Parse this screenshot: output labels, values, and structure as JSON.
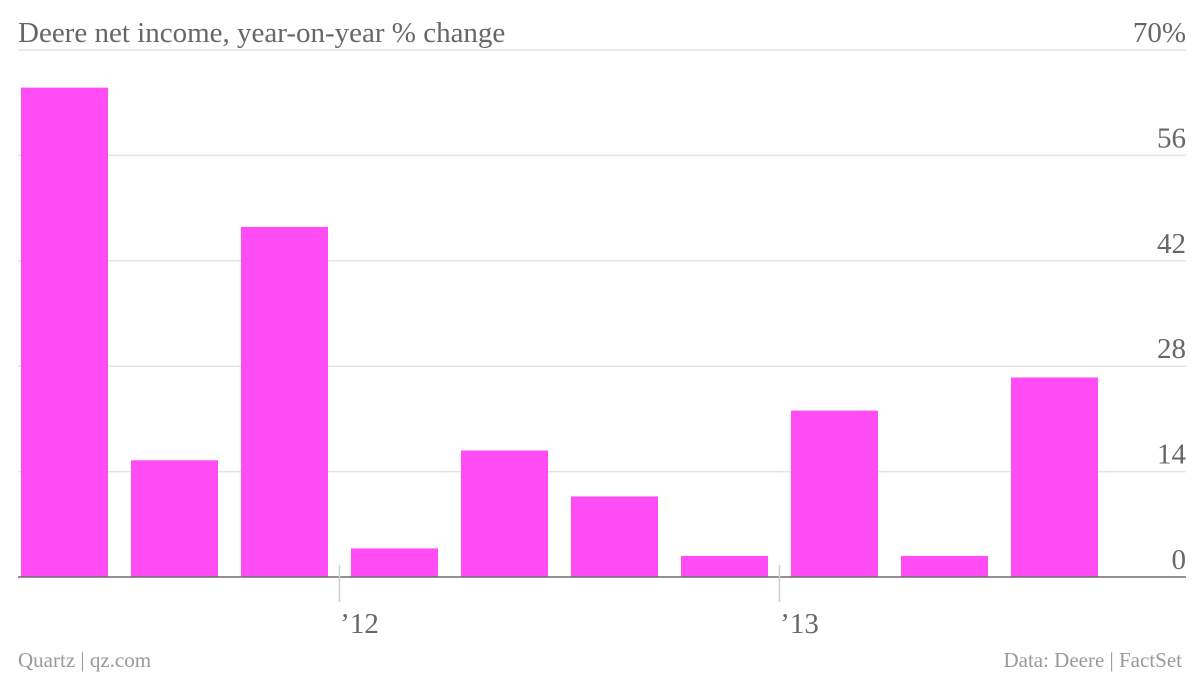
{
  "chart_data": {
    "type": "bar",
    "title": "Deere net income, year-on-year % change",
    "unit_suffix": "%",
    "series": [
      {
        "color": "#ff4cf5",
        "values": [
          65,
          15.5,
          46.5,
          3.8,
          16.8,
          10.7,
          2.8,
          22.1,
          2.8,
          26.5
        ]
      }
    ],
    "y_ticks": [
      0,
      14,
      28,
      42,
      56,
      70
    ],
    "ylim": [
      0,
      70
    ],
    "x_tick_labels": [
      {
        "label": "’12",
        "after_bar_index": 2
      },
      {
        "label": "’13",
        "after_bar_index": 6
      }
    ],
    "grid": true
  },
  "footer": {
    "source_left": "Quartz | qz.com",
    "source_right": "Data: Deere | FactSet"
  }
}
